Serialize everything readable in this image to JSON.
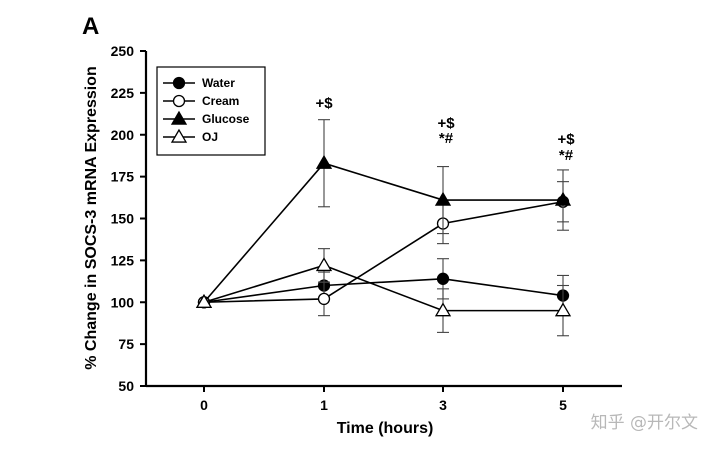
{
  "panel_label": "A",
  "watermark": "知乎 @开尔文",
  "chart_data": {
    "type": "line",
    "title": "",
    "xlabel": "Time (hours)",
    "ylabel": "% Change in SOCS-3 mRNA Expression",
    "categories": [
      "0",
      "1",
      "3",
      "5"
    ],
    "ylim": [
      50,
      250
    ],
    "yticks": [
      50,
      75,
      100,
      125,
      150,
      175,
      200,
      225,
      250
    ],
    "grid": false,
    "legend_position": "top-left",
    "series": [
      {
        "name": "Water",
        "marker": "circle-filled",
        "values": [
          100,
          110,
          114,
          104
        ],
        "errors": [
          0,
          8,
          12,
          12
        ]
      },
      {
        "name": "Cream",
        "marker": "circle-open",
        "values": [
          100,
          102,
          147,
          160
        ],
        "errors": [
          0,
          10,
          12,
          12
        ]
      },
      {
        "name": "Glucose",
        "marker": "triangle-filled",
        "values": [
          100,
          183,
          161,
          161
        ],
        "errors": [
          0,
          26,
          20,
          18
        ]
      },
      {
        "name": "OJ",
        "marker": "triangle-open",
        "values": [
          100,
          122,
          95,
          95
        ],
        "errors": [
          0,
          10,
          13,
          15
        ]
      }
    ],
    "annotations": [
      {
        "x": "1",
        "text": "+$"
      },
      {
        "x": "3",
        "text": "+$"
      },
      {
        "x": "3",
        "text": "*#"
      },
      {
        "x": "5",
        "text": "+$"
      },
      {
        "x": "5",
        "text": "*#"
      }
    ]
  }
}
